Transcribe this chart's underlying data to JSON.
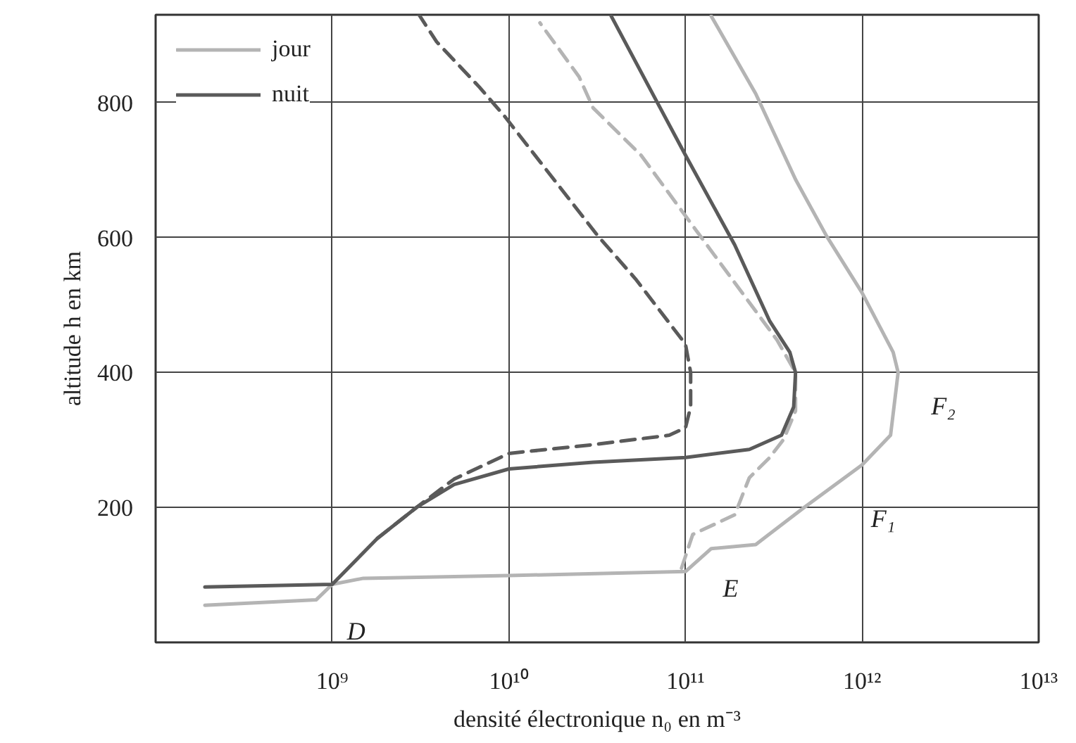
{
  "chart_data": {
    "type": "line",
    "xlabel": "densité électronique n₀ en m⁻³",
    "ylabel": "altitude h en km",
    "log": "x",
    "xlim": [
      100000000.0,
      10000000000000.0
    ],
    "ylim": [
      0,
      930
    ],
    "xticks": [
      {
        "value": 1000000000.0,
        "label": "10⁹"
      },
      {
        "value": 10000000000.0,
        "label": "10¹⁰"
      },
      {
        "value": 100000000000.0,
        "label": "10¹¹"
      },
      {
        "value": 1000000000000.0,
        "label": "10¹²"
      },
      {
        "value": 10000000000000.0,
        "label": "10¹³"
      }
    ],
    "yticks": [
      200,
      400,
      600,
      800
    ],
    "grid": true,
    "legend": "top left",
    "series": [
      {
        "name": "jour",
        "color": "#b4b4b4",
        "line_style": "solid",
        "x": [
          190000000.0,
          810000000.0,
          1000000000.0,
          1500000000.0,
          10000000000.0,
          100000000000.0,
          140000000000.0,
          250000000000.0,
          470000000000.0,
          1000000000000.0,
          1450000000000.0,
          1600000000000.0,
          1500000000000.0,
          1000000000000.0,
          630000000000.0,
          420000000000.0,
          250000000000.0,
          140000000000.0
        ],
        "values": [
          55,
          63,
          86,
          95,
          99,
          105,
          139,
          145,
          200,
          263,
          307,
          400,
          430,
          518,
          602,
          686,
          813,
          928
        ]
      },
      {
        "color": "#b4b4b4",
        "line_style": "dashed",
        "x": [
          95000000000.0,
          110000000000.0,
          190000000000.0,
          230000000000.0,
          300000000000.0,
          360000000000.0,
          420000000000.0,
          420000000000.0,
          330000000000.0,
          190000000000.0,
          100000000000.0,
          56000000000.0,
          30000000000.0,
          25000000000.0,
          15000000000.0
        ],
        "values": [
          110,
          160,
          189,
          244,
          274,
          301,
          343,
          400,
          448,
          533,
          632,
          722,
          792,
          838,
          918
        ]
      },
      {
        "name": "nuit",
        "color": "#5a5a5a",
        "line_style": "solid",
        "x": [
          190000000.0,
          1000000000.0,
          1800000000.0,
          3000000000.0,
          4900000000.0,
          10000000000.0,
          30000000000.0,
          100000000000.0,
          230000000000.0,
          350000000000.0,
          410000000000.0,
          420000000000.0,
          390000000000.0,
          300000000000.0,
          190000000000.0,
          100000000000.0,
          68000000000.0,
          38000000000.0
        ],
        "values": [
          82,
          86,
          154,
          200,
          234,
          257,
          267,
          274,
          286,
          307,
          349,
          400,
          430,
          476,
          589,
          722,
          804,
          928
        ]
      },
      {
        "color": "#5a5a5a",
        "line_style": "dashed",
        "x": [
          1800000000.0,
          3000000000.0,
          4900000000.0,
          10000000000.0,
          30000000000.0,
          81000000000.0,
          100000000000.0,
          107000000000.0,
          107000000000.0,
          100000000000.0,
          52000000000.0,
          32000000000.0,
          9500000000.0,
          6800000000.0,
          3900000000.0,
          3100000000.0
        ],
        "values": [
          154,
          200,
          242,
          280,
          293,
          307,
          318,
          349,
          400,
          442,
          539,
          602,
          779,
          823,
          890,
          930
        ]
      }
    ],
    "annotations": [
      {
        "text": "D",
        "x": 1000000000.0,
        "y": 86
      },
      {
        "text": "E",
        "x": 100000000000.0,
        "y": 105
      },
      {
        "text": "F₁",
        "x": 470000000000.0,
        "y": 200
      },
      {
        "text": "F₂",
        "x": 1600000000000.0,
        "y": 400
      }
    ]
  }
}
